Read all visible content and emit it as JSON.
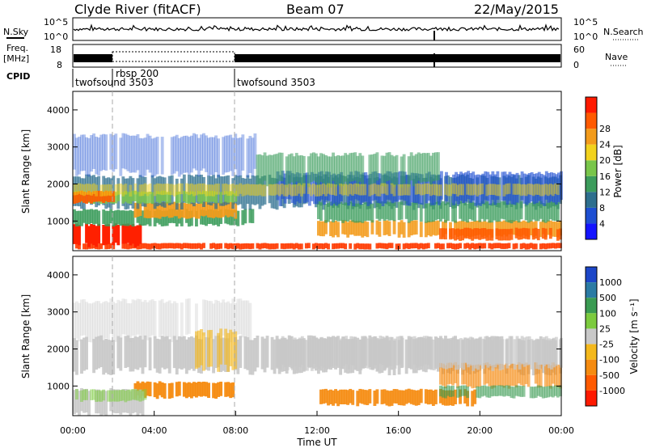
{
  "header": {
    "station": "Clyde River (fitACF)",
    "beam": "Beam 07",
    "date": "22/May/2015"
  },
  "panels": {
    "nsky_label": "N.Sky",
    "nsky_hi": "10^5",
    "nsky_lo": "10^0",
    "nsearch_label": "N.Search",
    "nsearch_hi": "10^5",
    "nsearch_lo": "10^0",
    "freq_label": "Freq.",
    "freq_unit": "[MHz]",
    "freq_hi": "18",
    "freq_lo": "8",
    "nave_label": "Nave",
    "nave_hi": "60",
    "nave_lo": "0",
    "cpid_label": "CPID",
    "cpid_1": "twofsound 3503",
    "cpid_2": "rbsp 200",
    "cpid_3": "twofsound 3503"
  },
  "chart_data": [
    {
      "type": "heatmap",
      "name": "power",
      "ylabel": "Slant Range [km]",
      "yticks": [
        "1000",
        "2000",
        "3000",
        "4000"
      ],
      "ylim": [
        200,
        4500
      ],
      "colorbar_label": "Power [dB]",
      "colorbar_ticks": [
        "4",
        "8",
        "12",
        "16",
        "20",
        "24",
        "28"
      ],
      "colorbar_colors": [
        "#1414ff",
        "#1e4fd2",
        "#2e6f8e",
        "#3c9c5c",
        "#79c64a",
        "#f2d21d",
        "#f39b1b",
        "#ff5a00",
        "#ff1a00"
      ]
    },
    {
      "type": "heatmap",
      "name": "velocity",
      "ylabel": "Slant Range [km]",
      "yticks": [
        "1000",
        "2000",
        "3000",
        "4000"
      ],
      "ylim": [
        200,
        4500
      ],
      "xlabel": "Time UT",
      "xticks": [
        "00:00",
        "04:00",
        "08:00",
        "12:00",
        "16:00",
        "20:00",
        "00:00"
      ],
      "colorbar_label": "Velocity [m s⁻¹]",
      "colorbar_ticks": [
        "1000",
        "500",
        "100",
        "25",
        "-25",
        "-100",
        "-500",
        "-1000"
      ],
      "colorbar_colors": [
        "#1c46c8",
        "#2b7ba4",
        "#3a9b52",
        "#7ccb3e",
        "#c8c8c8",
        "#f4b81c",
        "#f58b10",
        "#ff5a00",
        "#ff1a00"
      ]
    }
  ]
}
